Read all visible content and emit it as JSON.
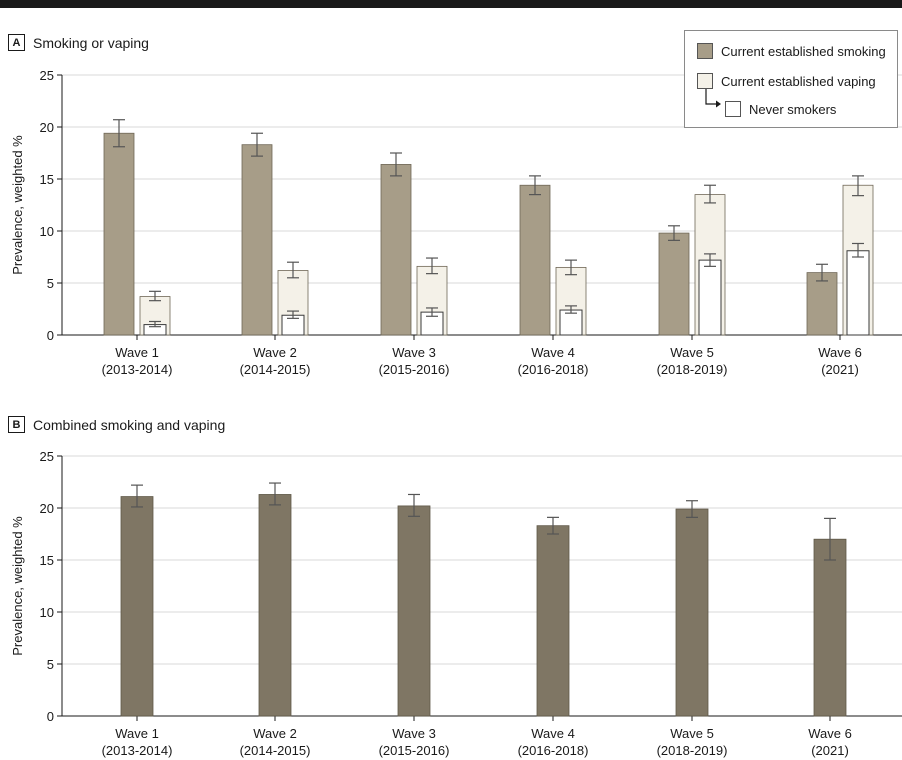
{
  "colors": {
    "smoking": "#a79d88",
    "vaping": "#f4f1e8",
    "never": "#ffffff",
    "combined": "#7f7664",
    "grid": "#d8d8d8",
    "axis": "#1a1a1a",
    "error": "#555555"
  },
  "legend": {
    "smoking": "Current established smoking",
    "vaping": "Current established vaping",
    "never": "Never smokers"
  },
  "chart_data": [
    {
      "panel": "A",
      "type": "bar",
      "title": "Smoking or vaping",
      "ylabel": "Prevalence, weighted %",
      "ylim": [
        0,
        25
      ],
      "yticks": [
        0,
        5,
        10,
        15,
        20,
        25
      ],
      "grid": true,
      "legend_position": "top-right",
      "categories": [
        [
          "Wave 1",
          "(2013-2014)"
        ],
        [
          "Wave 2",
          "(2014-2015)"
        ],
        [
          "Wave 3",
          "(2015-2016)"
        ],
        [
          "Wave 4",
          "(2016-2018)"
        ],
        [
          "Wave 5",
          "(2018-2019)"
        ],
        [
          "Wave 6",
          "(2021)"
        ]
      ],
      "series": [
        {
          "name": "Current established smoking",
          "values": [
            19.4,
            18.3,
            16.4,
            14.4,
            9.8,
            6.0
          ],
          "ci": [
            [
              18.1,
              20.7
            ],
            [
              17.2,
              19.4
            ],
            [
              15.3,
              17.5
            ],
            [
              13.5,
              15.3
            ],
            [
              9.1,
              10.5
            ],
            [
              5.2,
              6.8
            ]
          ]
        },
        {
          "name": "Current established vaping",
          "values": [
            3.7,
            6.2,
            6.6,
            6.5,
            13.5,
            14.4
          ],
          "ci": [
            [
              3.3,
              4.2
            ],
            [
              5.5,
              7.0
            ],
            [
              5.9,
              7.4
            ],
            [
              5.8,
              7.2
            ],
            [
              12.7,
              14.4
            ],
            [
              13.4,
              15.3
            ]
          ]
        },
        {
          "name": "Never smokers",
          "values": [
            1.0,
            1.9,
            2.2,
            2.4,
            7.2,
            8.1
          ],
          "ci": [
            [
              0.8,
              1.3
            ],
            [
              1.6,
              2.3
            ],
            [
              1.8,
              2.6
            ],
            [
              2.1,
              2.8
            ],
            [
              6.6,
              7.8
            ],
            [
              7.5,
              8.8
            ]
          ]
        }
      ]
    },
    {
      "panel": "B",
      "type": "bar",
      "title": "Combined smoking and vaping",
      "ylabel": "Prevalence, weighted %",
      "ylim": [
        0,
        25
      ],
      "yticks": [
        0,
        5,
        10,
        15,
        20,
        25
      ],
      "grid": true,
      "categories": [
        [
          "Wave 1",
          "(2013-2014)"
        ],
        [
          "Wave 2",
          "(2014-2015)"
        ],
        [
          "Wave 3",
          "(2015-2016)"
        ],
        [
          "Wave 4",
          "(2016-2018)"
        ],
        [
          "Wave 5",
          "(2018-2019)"
        ],
        [
          "Wave 6",
          "(2021)"
        ]
      ],
      "series": [
        {
          "values": [
            21.1,
            21.3,
            20.2,
            18.3,
            19.9,
            17.0
          ],
          "ci": [
            [
              20.1,
              22.2
            ],
            [
              20.3,
              22.4
            ],
            [
              19.2,
              21.3
            ],
            [
              17.5,
              19.1
            ],
            [
              19.1,
              20.7
            ],
            [
              15.0,
              19.0
            ]
          ]
        }
      ]
    }
  ]
}
